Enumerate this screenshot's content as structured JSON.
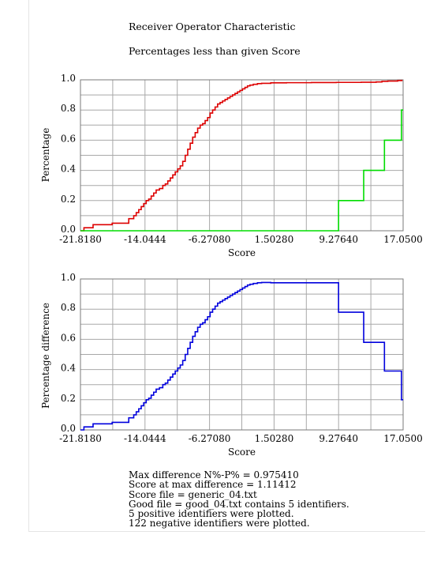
{
  "titles": {
    "line1": "Receiver Operator Characteristic",
    "line2": "Percentages less than given Score"
  },
  "chart_data": [
    {
      "type": "line",
      "title": "Percentages less than given Score",
      "xlabel": "Score",
      "ylabel": "Percentage",
      "xlim": [
        -21.818,
        17.05
      ],
      "ylim": [
        0,
        1
      ],
      "x_ticks": [
        "-21.8180",
        "-14.0444",
        "-6.27080",
        "1.50280",
        "9.27640",
        "17.0500"
      ],
      "y_ticks": [
        "0.0",
        "0.2",
        "0.4",
        "0.6",
        "0.8",
        "1.0"
      ],
      "grid": true,
      "colors": {
        "negative": "#dd0000",
        "positive": "#00dd00"
      },
      "series": [
        {
          "step": true,
          "color": "#dd0000",
          "x": [
            -21.818,
            -21.4,
            -20.3,
            -18.0,
            -16.0,
            -15.4,
            -15.1,
            -14.8,
            -14.5,
            -14.2,
            -13.9,
            -13.6,
            -13.3,
            -13.0,
            -12.7,
            -12.3,
            -11.9,
            -11.6,
            -11.3,
            -11.0,
            -10.7,
            -10.4,
            -10.1,
            -9.8,
            -9.5,
            -9.2,
            -8.9,
            -8.6,
            -8.3,
            -8.0,
            -7.7,
            -7.4,
            -7.1,
            -6.8,
            -6.5,
            -6.2,
            -5.9,
            -5.6,
            -5.3,
            -5.0,
            -4.7,
            -4.4,
            -4.1,
            -3.8,
            -3.5,
            -3.2,
            -2.9,
            -2.6,
            -2.3,
            -2.0,
            -1.7,
            -1.4,
            -1.0,
            -0.5,
            0.0,
            1.11,
            3.0,
            6.0,
            9.0,
            12.0,
            13.8,
            14.5,
            15.2,
            16.4,
            16.9
          ],
          "y": [
            0.0,
            0.02,
            0.04,
            0.05,
            0.08,
            0.1,
            0.12,
            0.14,
            0.16,
            0.18,
            0.2,
            0.21,
            0.23,
            0.25,
            0.27,
            0.28,
            0.3,
            0.31,
            0.33,
            0.35,
            0.37,
            0.39,
            0.41,
            0.43,
            0.46,
            0.5,
            0.54,
            0.58,
            0.62,
            0.65,
            0.68,
            0.7,
            0.71,
            0.73,
            0.75,
            0.78,
            0.8,
            0.82,
            0.84,
            0.85,
            0.86,
            0.87,
            0.88,
            0.89,
            0.9,
            0.91,
            0.92,
            0.93,
            0.94,
            0.95,
            0.96,
            0.965,
            0.97,
            0.975,
            0.977,
            0.98,
            0.981,
            0.982,
            0.983,
            0.984,
            0.986,
            0.99,
            0.992,
            0.995,
            1.0
          ]
        },
        {
          "step": true,
          "color": "#00dd00",
          "x": [
            -21.818,
            9.27,
            12.3,
            14.8,
            16.85,
            17.05
          ],
          "y": [
            0.0,
            0.2,
            0.4,
            0.6,
            0.8,
            0.8
          ]
        }
      ]
    },
    {
      "type": "line",
      "xlabel": "Score",
      "ylabel": "Percentage difference",
      "xlim": [
        -21.818,
        17.05
      ],
      "ylim": [
        0,
        1
      ],
      "x_ticks": [
        "-21.8180",
        "-14.0444",
        "-6.27080",
        "1.50280",
        "9.27640",
        "17.0500"
      ],
      "y_ticks": [
        "0.0",
        "0.2",
        "0.4",
        "0.6",
        "0.8",
        "1.0"
      ],
      "grid": true,
      "colors": {
        "difference": "#0000dd"
      },
      "series": [
        {
          "step": true,
          "color": "#0000dd",
          "x": [
            -21.818,
            -21.4,
            -20.3,
            -18.0,
            -16.0,
            -15.4,
            -15.1,
            -14.8,
            -14.5,
            -14.2,
            -13.9,
            -13.6,
            -13.3,
            -13.0,
            -12.7,
            -12.3,
            -11.9,
            -11.6,
            -11.3,
            -11.0,
            -10.7,
            -10.4,
            -10.1,
            -9.8,
            -9.5,
            -9.2,
            -8.9,
            -8.6,
            -8.3,
            -8.0,
            -7.7,
            -7.4,
            -7.1,
            -6.8,
            -6.5,
            -6.2,
            -5.9,
            -5.6,
            -5.3,
            -5.0,
            -4.7,
            -4.4,
            -4.1,
            -3.8,
            -3.5,
            -3.2,
            -2.9,
            -2.6,
            -2.3,
            -2.0,
            -1.7,
            -1.4,
            -1.0,
            -0.5,
            0.0,
            1.11,
            9.27,
            12.3,
            14.8,
            16.85,
            17.05
          ],
          "y": [
            0.0,
            0.02,
            0.04,
            0.05,
            0.08,
            0.1,
            0.12,
            0.14,
            0.16,
            0.18,
            0.2,
            0.21,
            0.23,
            0.25,
            0.27,
            0.28,
            0.3,
            0.31,
            0.33,
            0.35,
            0.37,
            0.39,
            0.41,
            0.43,
            0.46,
            0.5,
            0.54,
            0.58,
            0.62,
            0.65,
            0.68,
            0.7,
            0.71,
            0.73,
            0.75,
            0.78,
            0.8,
            0.82,
            0.84,
            0.85,
            0.86,
            0.87,
            0.88,
            0.89,
            0.9,
            0.91,
            0.92,
            0.93,
            0.94,
            0.95,
            0.96,
            0.965,
            0.97,
            0.975,
            0.977,
            0.975,
            0.78,
            0.58,
            0.39,
            0.2,
            0.2
          ]
        }
      ]
    }
  ],
  "stats": [
    "Max difference N%-P% = 0.975410",
    "Score at max difference = 1.11412",
    "Score file = generic_04.txt",
    "Good file = good_04.txt contains 5 identifiers.",
    "5 positive identifiers were plotted.",
    "122 negative identifiers were plotted."
  ]
}
